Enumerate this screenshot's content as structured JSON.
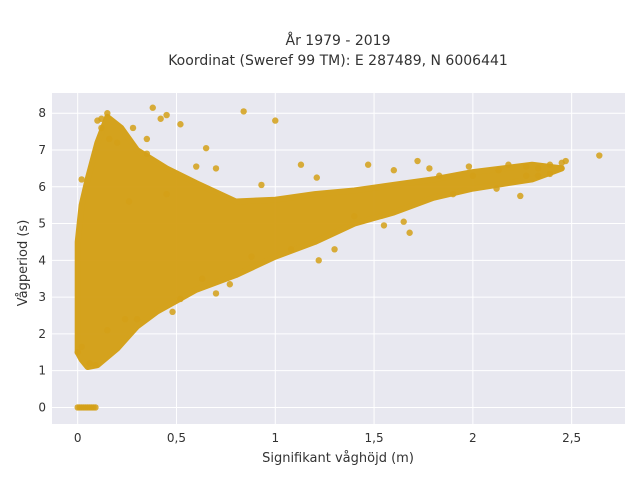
{
  "chart_data": {
    "type": "scatter",
    "title_lines": [
      "År 1979 - 2019",
      "Koordinat (Sweref 99 TM): E 287489, N 6006441"
    ],
    "xlabel": "Signifikant våghöjd (m)",
    "ylabel": "Vågperiod (s)",
    "xlim": [
      -0.13,
      2.77
    ],
    "ylim": [
      -0.45,
      8.55
    ],
    "x_ticks": [
      0,
      0.5,
      1,
      1.5,
      2,
      2.5
    ],
    "x_tick_labels": [
      "0",
      "0,5",
      "1",
      "1,5",
      "2",
      "2,5"
    ],
    "y_ticks": [
      0,
      1,
      2,
      3,
      4,
      5,
      6,
      7,
      8
    ],
    "y_tick_labels": [
      "0",
      "1",
      "2",
      "3",
      "4",
      "5",
      "6",
      "7",
      "8"
    ],
    "grid": true,
    "point_color": "#D4A017",
    "plot_background": "#E8E8F0",
    "cloud_outline": [
      [
        0.0,
        1.5
      ],
      [
        0.02,
        1.3
      ],
      [
        0.05,
        1.1
      ],
      [
        0.1,
        1.15
      ],
      [
        0.2,
        1.6
      ],
      [
        0.3,
        2.2
      ],
      [
        0.4,
        2.6
      ],
      [
        0.5,
        2.9
      ],
      [
        0.6,
        3.2
      ],
      [
        0.8,
        3.6
      ],
      [
        1.0,
        4.1
      ],
      [
        1.2,
        4.5
      ],
      [
        1.4,
        5.0
      ],
      [
        1.6,
        5.3
      ],
      [
        1.8,
        5.7
      ],
      [
        2.0,
        5.95
      ],
      [
        2.3,
        6.2
      ],
      [
        2.45,
        6.5
      ],
      [
        2.3,
        6.6
      ],
      [
        2.0,
        6.4
      ],
      [
        1.8,
        6.2
      ],
      [
        1.6,
        6.05
      ],
      [
        1.4,
        5.9
      ],
      [
        1.2,
        5.8
      ],
      [
        1.0,
        5.65
      ],
      [
        0.8,
        5.6
      ],
      [
        0.6,
        6.1
      ],
      [
        0.45,
        6.5
      ],
      [
        0.3,
        7.0
      ],
      [
        0.22,
        7.6
      ],
      [
        0.15,
        7.9
      ],
      [
        0.1,
        7.2
      ],
      [
        0.05,
        6.2
      ],
      [
        0.02,
        5.5
      ],
      [
        0.0,
        4.5
      ]
    ],
    "outliers": [
      [
        0.38,
        8.15
      ],
      [
        0.84,
        8.05
      ],
      [
        1.0,
        7.8
      ],
      [
        0.45,
        7.95
      ],
      [
        0.52,
        7.7
      ],
      [
        0.42,
        7.85
      ],
      [
        0.28,
        7.6
      ],
      [
        0.65,
        7.05
      ],
      [
        0.93,
        6.05
      ],
      [
        1.13,
        6.6
      ],
      [
        1.21,
        6.25
      ],
      [
        1.47,
        6.6
      ],
      [
        1.6,
        6.45
      ],
      [
        1.72,
        6.7
      ],
      [
        1.78,
        6.5
      ],
      [
        1.83,
        6.3
      ],
      [
        1.98,
        6.55
      ],
      [
        2.13,
        6.45
      ],
      [
        2.18,
        6.6
      ],
      [
        2.27,
        6.55
      ],
      [
        2.33,
        6.5
      ],
      [
        2.39,
        6.6
      ],
      [
        2.45,
        6.65
      ],
      [
        2.47,
        6.7
      ],
      [
        2.33,
        6.3
      ],
      [
        2.39,
        6.35
      ],
      [
        2.24,
        5.75
      ],
      [
        2.12,
        5.95
      ],
      [
        2.27,
        6.3
      ],
      [
        2.64,
        6.85
      ],
      [
        1.65,
        5.05
      ],
      [
        1.68,
        4.75
      ],
      [
        1.55,
        4.95
      ],
      [
        1.3,
        4.3
      ],
      [
        0.88,
        4.1
      ],
      [
        1.08,
        4.3
      ],
      [
        1.22,
        4.0
      ],
      [
        0.63,
        3.5
      ],
      [
        0.77,
        3.35
      ],
      [
        0.48,
        2.6
      ],
      [
        0.3,
        2.4
      ],
      [
        0.24,
        2.4
      ],
      [
        0.15,
        2.1
      ],
      [
        0.02,
        6.2
      ],
      [
        0.16,
        7.3
      ],
      [
        0.2,
        7.2
      ],
      [
        0.12,
        7.6
      ],
      [
        0.35,
        6.9
      ],
      [
        0.6,
        6.55
      ],
      [
        0.7,
        6.5
      ],
      [
        0.12,
        7.85
      ],
      [
        0.15,
        8.0
      ],
      [
        0.1,
        7.8
      ],
      [
        0.26,
        5.6
      ],
      [
        0.45,
        5.8
      ],
      [
        0.02,
        1.65
      ],
      [
        0.0,
        1.5
      ],
      [
        0.06,
        1.2
      ],
      [
        0.09,
        1.15
      ],
      [
        0.52,
        2.95
      ],
      [
        0.7,
        3.1
      ],
      [
        1.4,
        5.2
      ],
      [
        1.9,
        5.8
      ],
      [
        2.0,
        6.3
      ],
      [
        0.35,
        7.3
      ]
    ],
    "zero_points": [
      [
        0.0,
        0.0
      ],
      [
        0.02,
        0.0
      ],
      [
        0.03,
        0.0
      ],
      [
        0.04,
        0.0
      ],
      [
        0.05,
        0.0
      ],
      [
        0.06,
        0.0
      ],
      [
        0.07,
        0.0
      ],
      [
        0.08,
        0.0
      ],
      [
        0.09,
        0.0
      ],
      [
        0.01,
        0.0
      ]
    ]
  }
}
